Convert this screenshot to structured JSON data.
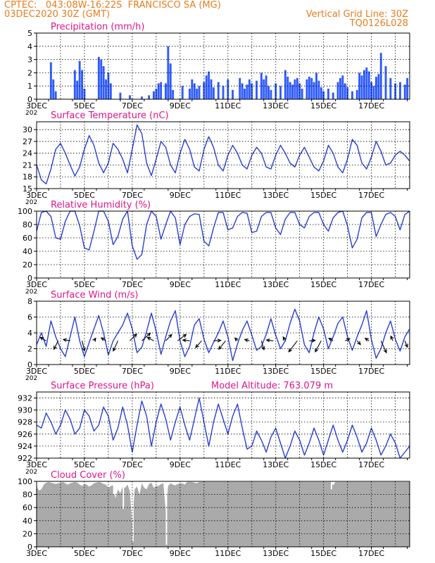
{
  "header": {
    "line1_left": "CPTEC:   043:08W-16:22S  FRANCISCO SA (MG)",
    "line2_left": "03DEC2020 30Z (GMT)",
    "line1_right": "Vertical Grid Line: 30Z",
    "line2_right": "TQ0126L028"
  },
  "colors": {
    "header": "#e87d1e",
    "title": "#e0158a",
    "series": "#2b3fd6",
    "precip_bar": "#2f5bff",
    "cloud_fill": "#aaaaaa",
    "axis": "#000000",
    "grid": "#000000"
  },
  "x_axis": {
    "day_min": 3.0,
    "day_max": 18.6,
    "tick_days": [
      3,
      5,
      7,
      9,
      11,
      13,
      15,
      17
    ],
    "tick_labels": [
      "3DEC",
      "5DEC",
      "7DEC",
      "9DEC",
      "11DEC",
      "13DEC",
      "15DEC",
      "17DEC"
    ],
    "year_fragment": "202",
    "vertical_grid_line": "30Z"
  },
  "chart_data": [
    {
      "type": "bar",
      "title": "Precipitation (mm/h)",
      "ylim": [
        0,
        5
      ],
      "yticks": [
        0,
        1,
        2,
        3,
        4,
        5
      ],
      "grid": true,
      "x_day": [
        3.6,
        3.7,
        3.8,
        4.6,
        4.7,
        4.8,
        4.9,
        5.0,
        5.6,
        5.7,
        5.8,
        5.9,
        6.0,
        6.1,
        6.5,
        6.9,
        7.4,
        7.7,
        7.9,
        8.0,
        8.1,
        8.2,
        8.4,
        8.5,
        8.6,
        8.7,
        9.1,
        9.4,
        9.5,
        9.6,
        9.7,
        9.8,
        10.0,
        10.1,
        10.2,
        10.3,
        10.4,
        10.6,
        10.8,
        11.0,
        11.2,
        11.5,
        11.6,
        11.7,
        11.8,
        11.9,
        12.0,
        12.2,
        12.4,
        12.5,
        12.6,
        12.7,
        12.8,
        13.0,
        13.2,
        13.4,
        13.5,
        13.6,
        13.7,
        13.8,
        13.9,
        14.0,
        14.1,
        14.3,
        14.4,
        14.5,
        14.6,
        14.7,
        14.8,
        14.9,
        15.0,
        15.2,
        15.4,
        15.6,
        15.7,
        15.8,
        15.9,
        16.0,
        16.2,
        16.4,
        16.5,
        16.6,
        16.7,
        16.8,
        16.9,
        17.0,
        17.1,
        17.2,
        17.3,
        17.4,
        17.6,
        17.8,
        18.0,
        18.2,
        18.4,
        18.5
      ],
      "values": [
        2.8,
        1.5,
        0.6,
        2.2,
        1.4,
        2.9,
        2.2,
        0.8,
        3.2,
        3.0,
        2.5,
        1.5,
        2.0,
        1.2,
        0.5,
        0.3,
        0.2,
        0.3,
        0.6,
        0.8,
        1.2,
        1.3,
        1.2,
        4.0,
        2.7,
        0.7,
        1.0,
        0.8,
        1.5,
        1.2,
        0.8,
        1.0,
        1.3,
        1.8,
        2.1,
        1.5,
        0.9,
        1.3,
        1.0,
        1.5,
        0.7,
        1.6,
        1.2,
        0.8,
        1.1,
        1.5,
        1.2,
        1.4,
        2.0,
        1.5,
        1.8,
        1.0,
        0.7,
        1.2,
        1.0,
        2.2,
        1.7,
        1.3,
        1.1,
        1.5,
        1.6,
        1.2,
        0.8,
        1.5,
        1.7,
        1.6,
        1.3,
        2.0,
        1.4,
        0.9,
        0.6,
        0.8,
        0.5,
        1.3,
        1.6,
        1.8,
        1.2,
        0.9,
        0.6,
        0.7,
        2.0,
        1.8,
        2.2,
        2.4,
        2.1,
        1.3,
        1.0,
        1.7,
        1.9,
        3.5,
        2.5,
        1.6,
        1.2,
        1.3,
        1.1,
        1.6
      ]
    },
    {
      "type": "line",
      "title": "Surface Temperature (nC)",
      "ylim": [
        15,
        32
      ],
      "yticks": [
        15,
        18,
        21,
        24,
        27,
        30
      ],
      "grid": true,
      "x_day": [
        3.0,
        3.2,
        3.4,
        3.6,
        3.8,
        4.0,
        4.2,
        4.4,
        4.6,
        4.8,
        5.0,
        5.2,
        5.4,
        5.6,
        5.8,
        6.0,
        6.2,
        6.4,
        6.6,
        6.8,
        7.0,
        7.2,
        7.4,
        7.6,
        7.8,
        8.0,
        8.2,
        8.4,
        8.6,
        8.8,
        9.0,
        9.2,
        9.4,
        9.6,
        9.8,
        10.0,
        10.2,
        10.4,
        10.6,
        10.8,
        11.0,
        11.2,
        11.4,
        11.6,
        11.8,
        12.0,
        12.2,
        12.4,
        12.6,
        12.8,
        13.0,
        13.2,
        13.4,
        13.6,
        13.8,
        14.0,
        14.2,
        14.4,
        14.6,
        14.8,
        15.0,
        15.2,
        15.4,
        15.6,
        15.8,
        16.0,
        16.2,
        16.4,
        16.6,
        16.8,
        17.0,
        17.2,
        17.4,
        17.6,
        17.8,
        18.0,
        18.2,
        18.4,
        18.6
      ],
      "values": [
        21.0,
        17.2,
        16.2,
        20.0,
        25.0,
        26.5,
        24.0,
        21.0,
        18.2,
        20.5,
        25.0,
        28.5,
        26.0,
        21.5,
        19.0,
        21.5,
        26.5,
        25.0,
        22.5,
        19.0,
        25.0,
        31.2,
        29.0,
        21.5,
        18.3,
        22.5,
        27.0,
        25.5,
        21.0,
        19.0,
        24.0,
        27.5,
        25.0,
        20.5,
        19.5,
        25.0,
        28.2,
        25.5,
        21.0,
        19.5,
        23.5,
        26.0,
        24.0,
        21.0,
        20.0,
        23.5,
        25.5,
        24.0,
        20.5,
        20.0,
        23.5,
        26.0,
        24.0,
        21.5,
        20.5,
        23.5,
        25.5,
        23.0,
        20.5,
        19.5,
        22.0,
        26.0,
        24.0,
        20.5,
        19.0,
        22.5,
        27.5,
        26.0,
        21.5,
        20.0,
        23.0,
        27.0,
        24.5,
        21.0,
        21.5,
        23.5,
        24.5,
        23.5,
        22.0
      ]
    },
    {
      "type": "line",
      "title": "Relative Humidity (%)",
      "ylim": [
        0,
        100
      ],
      "yticks": [
        0,
        20,
        40,
        60,
        80,
        100
      ],
      "grid": true,
      "x_day": [
        3.0,
        3.2,
        3.4,
        3.6,
        3.8,
        4.0,
        4.2,
        4.4,
        4.6,
        4.8,
        5.0,
        5.2,
        5.4,
        5.6,
        5.8,
        6.0,
        6.2,
        6.4,
        6.6,
        6.8,
        7.0,
        7.2,
        7.4,
        7.6,
        7.8,
        8.0,
        8.2,
        8.4,
        8.6,
        8.8,
        9.0,
        9.2,
        9.4,
        9.6,
        9.8,
        10.0,
        10.2,
        10.4,
        10.6,
        10.8,
        11.0,
        11.2,
        11.4,
        11.6,
        11.8,
        12.0,
        12.2,
        12.4,
        12.6,
        12.8,
        13.0,
        13.2,
        13.4,
        13.6,
        13.8,
        14.0,
        14.2,
        14.4,
        14.6,
        14.8,
        15.0,
        15.2,
        15.4,
        15.6,
        15.8,
        16.0,
        16.2,
        16.4,
        16.6,
        16.8,
        17.0,
        17.2,
        17.4,
        17.6,
        17.8,
        18.0,
        18.2,
        18.4,
        18.6
      ],
      "values": [
        70,
        98,
        100,
        92,
        60,
        58,
        85,
        100,
        100,
        78,
        45,
        42,
        70,
        100,
        100,
        85,
        50,
        62,
        88,
        100,
        48,
        28,
        35,
        80,
        100,
        92,
        58,
        80,
        100,
        90,
        50,
        80,
        92,
        96,
        95,
        55,
        48,
        75,
        98,
        98,
        72,
        75,
        92,
        98,
        97,
        68,
        70,
        92,
        98,
        98,
        75,
        65,
        88,
        98,
        98,
        80,
        75,
        92,
        98,
        98,
        80,
        70,
        90,
        98,
        100,
        78,
        45,
        58,
        90,
        98,
        98,
        62,
        80,
        95,
        98,
        92,
        72,
        95,
        100
      ]
    },
    {
      "type": "line",
      "title": "Surface Wind (m/s)",
      "ylim": [
        0,
        8
      ],
      "yticks": [
        0,
        2,
        4,
        6,
        8
      ],
      "grid": true,
      "x_day": [
        3.0,
        3.2,
        3.4,
        3.6,
        3.8,
        4.0,
        4.2,
        4.4,
        4.6,
        4.8,
        5.0,
        5.2,
        5.4,
        5.6,
        5.8,
        6.0,
        6.2,
        6.4,
        6.6,
        6.8,
        7.0,
        7.2,
        7.4,
        7.6,
        7.8,
        8.0,
        8.2,
        8.4,
        8.6,
        8.8,
        9.0,
        9.2,
        9.4,
        9.6,
        9.8,
        10.0,
        10.2,
        10.4,
        10.6,
        10.8,
        11.0,
        11.2,
        11.4,
        11.6,
        11.8,
        12.0,
        12.2,
        12.4,
        12.6,
        12.8,
        13.0,
        13.2,
        13.4,
        13.6,
        13.8,
        14.0,
        14.2,
        14.4,
        14.6,
        14.8,
        15.0,
        15.2,
        15.4,
        15.6,
        15.8,
        16.0,
        16.2,
        16.4,
        16.6,
        16.8,
        17.0,
        17.2,
        17.4,
        17.6,
        17.8,
        18.0,
        18.2,
        18.4,
        18.6
      ],
      "values": [
        2.5,
        4.0,
        2.3,
        5.5,
        3.5,
        2.0,
        1.0,
        3.5,
        6.0,
        3.0,
        1.0,
        2.8,
        4.5,
        6.2,
        4.0,
        1.2,
        3.0,
        4.0,
        5.0,
        6.5,
        4.5,
        1.5,
        2.2,
        4.2,
        6.5,
        4.2,
        1.3,
        3.5,
        5.5,
        6.8,
        3.0,
        1.0,
        2.3,
        5.0,
        5.8,
        3.2,
        1.5,
        2.8,
        4.0,
        5.5,
        3.5,
        0.5,
        2.6,
        4.3,
        5.5,
        3.7,
        1.8,
        2.3,
        3.8,
        5.8,
        3.7,
        2.0,
        3.0,
        5.2,
        7.0,
        5.5,
        2.5,
        1.5,
        4.0,
        6.0,
        4.5,
        2.0,
        3.5,
        5.2,
        6.0,
        3.5,
        1.8,
        3.5,
        5.0,
        6.8,
        3.2,
        0.8,
        2.0,
        4.0,
        5.5,
        3.2,
        1.7,
        3.5,
        4.5
      ],
      "vector_days": [
        3.4,
        3.9,
        4.4,
        4.9,
        5.4,
        5.9,
        6.4,
        6.9,
        7.4,
        7.9,
        8.4,
        8.9,
        9.4,
        9.9,
        10.4,
        10.9,
        11.4,
        11.9,
        12.4,
        12.9,
        13.4,
        13.9,
        14.4,
        14.9,
        15.4,
        15.9,
        16.4,
        16.9,
        17.4,
        17.9,
        18.4
      ],
      "vector_u": [
        -1.4,
        -1.0,
        -1.6,
        0.6,
        0.4,
        -1.1,
        -1.1,
        1.6,
        2.0,
        -1.5,
        1.4,
        2.0,
        -1.6,
        -1.4,
        1.7,
        -1.6,
        -0.6,
        -1.1,
        0.6,
        -1.6,
        -0.5,
        -2.0,
        1.4,
        -1.4,
        -1.0,
        1.1,
        0.8,
        -0.9,
        1.3,
        -0.5,
        0.6
      ],
      "vector_v": [
        0.8,
        -2.0,
        0.3,
        -2.4,
        0.6,
        0.7,
        -2.4,
        1.6,
        1.8,
        0.8,
        1.5,
        1.5,
        0.2,
        -1.6,
        0.1,
        -2.0,
        0.7,
        0.3,
        -2.1,
        0.2,
        0.9,
        -2.6,
        0.1,
        -2.6,
        0.6,
        0.5,
        -0.9,
        0.6,
        -2.8,
        1.1,
        -1.5
      ]
    },
    {
      "type": "line",
      "title": "Surface Pressure (hPa)",
      "ylim": [
        922,
        933
      ],
      "yticks": [
        922,
        924,
        926,
        928,
        930,
        932
      ],
      "grid": true,
      "x_day": [
        3.0,
        3.2,
        3.4,
        3.6,
        3.8,
        4.0,
        4.2,
        4.4,
        4.6,
        4.8,
        5.0,
        5.2,
        5.4,
        5.6,
        5.8,
        6.0,
        6.2,
        6.4,
        6.6,
        6.8,
        7.0,
        7.2,
        7.4,
        7.6,
        7.8,
        8.0,
        8.2,
        8.4,
        8.6,
        8.8,
        9.0,
        9.2,
        9.4,
        9.6,
        9.8,
        10.0,
        10.2,
        10.4,
        10.6,
        10.8,
        11.0,
        11.2,
        11.4,
        11.6,
        11.8,
        12.0,
        12.2,
        12.4,
        12.6,
        12.8,
        13.0,
        13.2,
        13.4,
        13.6,
        13.8,
        14.0,
        14.2,
        14.4,
        14.6,
        14.8,
        15.0,
        15.2,
        15.4,
        15.6,
        15.8,
        16.0,
        16.2,
        16.4,
        16.6,
        16.8,
        17.0,
        17.2,
        17.4,
        17.6,
        17.8,
        18.0,
        18.2,
        18.4,
        18.6
      ],
      "values": [
        927.5,
        927.0,
        929.5,
        928.0,
        926.0,
        927.5,
        930.0,
        928.5,
        926.0,
        927.0,
        930.0,
        929.0,
        926.5,
        927.5,
        930.5,
        929.0,
        925.0,
        927.0,
        930.5,
        927.5,
        923.0,
        927.5,
        931.5,
        929.0,
        924.0,
        928.0,
        931.0,
        928.5,
        925.0,
        928.0,
        930.5,
        927.5,
        925.0,
        928.5,
        932.0,
        928.0,
        924.0,
        928.0,
        931.0,
        928.5,
        926.0,
        929.0,
        931.0,
        927.0,
        923.5,
        924.0,
        926.5,
        925.0,
        923.0,
        925.5,
        927.0,
        924.5,
        922.0,
        924.0,
        926.5,
        925.0,
        922.5,
        924.5,
        927.0,
        925.0,
        922.5,
        925.0,
        927.5,
        925.0,
        923.0,
        925.0,
        927.5,
        925.5,
        923.0,
        924.5,
        927.0,
        925.0,
        922.5,
        924.0,
        926.0,
        924.5,
        922.0,
        923.0,
        924.0
      ],
      "annotation": "Model Altitude: 763.079 m"
    },
    {
      "type": "area",
      "title": "Cloud Cover (%)",
      "ylim": [
        0,
        100
      ],
      "yticks": [
        0,
        20,
        40,
        60,
        80,
        100
      ],
      "grid": true,
      "x_day": [
        3.0,
        3.1,
        3.2,
        3.3,
        3.4,
        3.5,
        3.6,
        3.7,
        3.8,
        3.9,
        4.0,
        4.1,
        4.2,
        4.3,
        4.4,
        4.5,
        4.6,
        4.7,
        4.8,
        4.9,
        5.0,
        5.1,
        5.2,
        5.3,
        5.4,
        5.5,
        5.6,
        5.7,
        5.8,
        5.9,
        6.0,
        6.1,
        6.2,
        6.3,
        6.4,
        6.5,
        6.6,
        6.7,
        6.8,
        6.9,
        7.0,
        7.1,
        7.2,
        7.3,
        7.4,
        7.5,
        7.6,
        7.7,
        7.8,
        7.9,
        8.0,
        8.1,
        8.2,
        8.3,
        8.4,
        8.5,
        8.6,
        8.7,
        8.8,
        8.9,
        9.0,
        9.1,
        9.2,
        9.3,
        9.4,
        9.5,
        9.6,
        9.7,
        9.8,
        9.9,
        10.0,
        10.1,
        10.2,
        10.3,
        10.4,
        10.5,
        10.6,
        10.7,
        10.8,
        10.9,
        11.0,
        11.1,
        11.2,
        11.3,
        11.4,
        11.5,
        11.6,
        11.7,
        11.8,
        11.9,
        12.0,
        12.1,
        12.2,
        12.3,
        12.4,
        12.5,
        12.6,
        12.7,
        12.8,
        12.9,
        13.0,
        13.1,
        13.2,
        13.3,
        13.4,
        13.5,
        13.6,
        13.7,
        13.8,
        13.9,
        14.0,
        14.1,
        14.2,
        14.3,
        14.4,
        14.5,
        14.6,
        14.7,
        14.8,
        14.9,
        15.0,
        15.1,
        15.2,
        15.3,
        15.4,
        15.5,
        15.6,
        15.7,
        15.8,
        15.9,
        16.0,
        16.1,
        16.2,
        16.3,
        16.4,
        16.5,
        16.6,
        16.7,
        16.8,
        16.9,
        17.0,
        17.1,
        17.2,
        17.3,
        17.4,
        17.5,
        17.6,
        17.7,
        17.8,
        17.9,
        18.0,
        18.1,
        18.2,
        18.3,
        18.4,
        18.5,
        18.6
      ],
      "values": [
        92,
        86,
        88,
        95,
        98,
        99,
        98,
        97,
        96,
        97,
        98,
        99,
        97,
        95,
        97,
        98,
        99,
        98,
        95,
        93,
        96,
        95,
        92,
        94,
        97,
        98,
        99,
        98,
        96,
        95,
        90,
        93,
        94,
        74,
        88,
        82,
        92,
        90,
        95,
        85,
        35,
        88,
        92,
        80,
        97,
        90,
        88,
        96,
        98,
        90,
        93,
        93,
        96,
        97,
        55,
        93,
        97,
        95,
        94,
        96,
        97,
        97,
        95,
        99,
        99,
        99,
        98,
        97,
        99,
        99,
        99,
        99,
        99,
        99,
        99,
        99,
        99,
        99,
        99,
        99,
        99,
        99,
        99,
        99,
        99,
        99,
        99,
        99,
        99,
        99,
        99,
        99,
        99,
        99,
        99,
        99,
        99,
        99,
        99,
        99,
        99,
        99,
        99,
        99,
        99,
        99,
        99,
        99,
        99,
        99,
        99,
        99,
        99,
        99,
        99,
        99,
        99,
        99,
        99,
        99,
        99,
        99,
        99,
        99,
        94,
        99,
        99,
        99,
        99,
        99,
        99,
        99,
        99,
        99,
        99,
        99,
        99,
        99,
        99,
        99,
        99,
        99,
        99,
        99,
        99,
        99,
        99,
        99,
        99,
        99,
        99,
        99,
        99,
        99,
        99,
        99,
        99
      ],
      "spikes": [
        {
          "day": 7.0,
          "value": 8
        },
        {
          "day": 8.4,
          "value": 3
        },
        {
          "day": 6.6,
          "value": 58
        },
        {
          "day": 6.2,
          "value": 80
        },
        {
          "day": 15.3,
          "value": 88
        }
      ]
    }
  ]
}
